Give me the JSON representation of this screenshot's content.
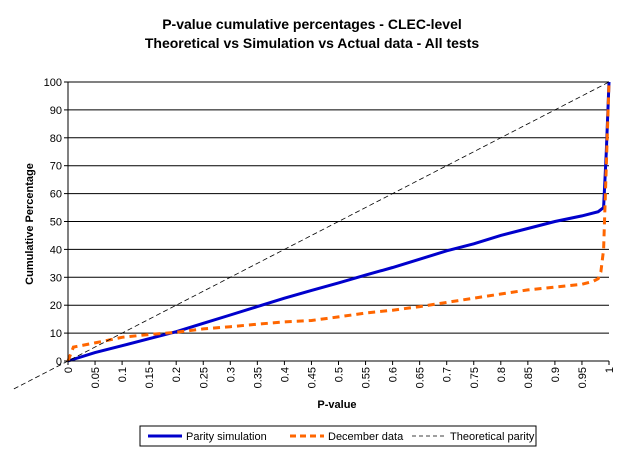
{
  "chart_data": {
    "type": "line",
    "title": "P-value cumulative percentages - CLEC-level",
    "subtitle": "Theoretical vs Simulation vs Actual data - All tests",
    "xlabel": "P-value",
    "ylabel": "Cumulative Percentage",
    "xlim": [
      0,
      1
    ],
    "ylim": [
      0,
      100
    ],
    "x_ticks": [
      "0",
      "0.05",
      "0.1",
      "0.15",
      "0.2",
      "0.25",
      "0.3",
      "0.35",
      "0.4",
      "0.45",
      "0.5",
      "0.55",
      "0.6",
      "0.65",
      "0.7",
      "0.75",
      "0.8",
      "0.85",
      "0.9",
      "0.95",
      "1"
    ],
    "y_ticks": [
      "0",
      "10",
      "20",
      "30",
      "40",
      "50",
      "60",
      "70",
      "80",
      "90",
      "100"
    ],
    "grid": "horizontal",
    "legend_position": "bottom",
    "series": [
      {
        "name": "Parity simulation",
        "color": "#0000cc",
        "style": "solid",
        "x": [
          0,
          0.05,
          0.1,
          0.15,
          0.2,
          0.25,
          0.3,
          0.35,
          0.4,
          0.45,
          0.5,
          0.55,
          0.6,
          0.65,
          0.7,
          0.75,
          0.8,
          0.85,
          0.9,
          0.95,
          0.98,
          0.99,
          0.995,
          1.0
        ],
        "y": [
          0,
          3,
          5.5,
          8,
          10.5,
          13.5,
          16.5,
          19.5,
          22.5,
          25.3,
          28,
          30.8,
          33.5,
          36.5,
          39.5,
          42,
          45,
          47.5,
          50,
          52,
          53.5,
          55,
          75,
          100
        ]
      },
      {
        "name": "December data",
        "color": "#ff6600",
        "style": "dashed",
        "x": [
          0,
          0.01,
          0.05,
          0.1,
          0.15,
          0.2,
          0.25,
          0.3,
          0.35,
          0.4,
          0.45,
          0.5,
          0.55,
          0.6,
          0.65,
          0.7,
          0.75,
          0.8,
          0.85,
          0.9,
          0.95,
          0.97,
          0.98,
          0.985,
          0.99,
          0.995,
          1.0
        ],
        "y": [
          0,
          5,
          6.5,
          8.5,
          9.5,
          10.3,
          11.5,
          12.3,
          13.2,
          14,
          14.5,
          15.8,
          17.2,
          18.2,
          19.5,
          21,
          22.5,
          24,
          25.5,
          26.5,
          27.5,
          28.5,
          29.5,
          32,
          40,
          70,
          100
        ]
      },
      {
        "name": "Theoretical parity",
        "color": "#000000",
        "style": "thin-dashed",
        "x": [
          -0.1,
          1.0
        ],
        "y": [
          -10,
          100
        ]
      }
    ]
  }
}
